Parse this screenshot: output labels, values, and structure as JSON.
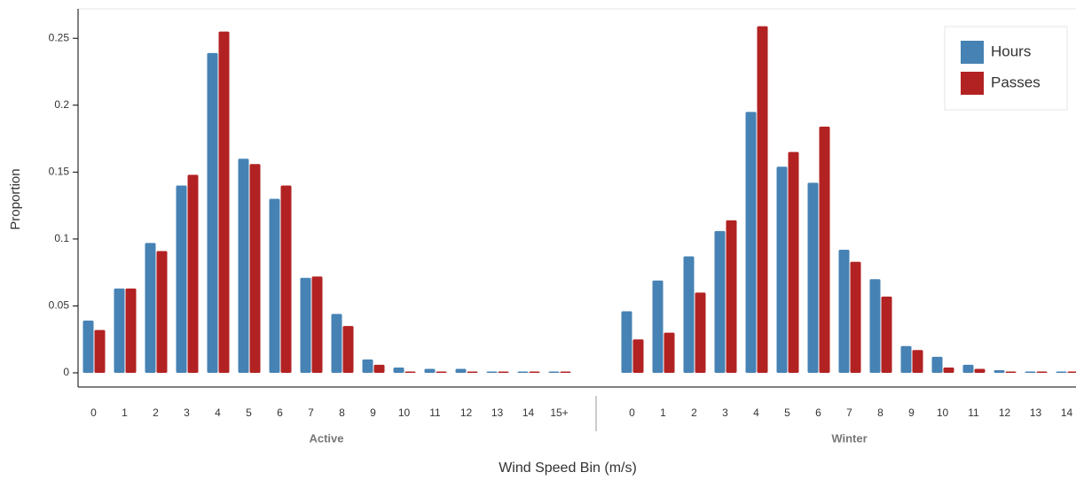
{
  "chart_data": {
    "type": "bar",
    "x_label": "Wind Speed Bin (m/s)",
    "y_label": "Proportion",
    "ylim": [
      -0.0106,
      0.272
    ],
    "yticks": [
      0,
      0.05,
      0.1,
      0.15,
      0.2,
      0.25
    ],
    "legend": "upper right",
    "groups": [
      {
        "name": "Active",
        "categories": [
          "0",
          "1",
          "2",
          "3",
          "4",
          "5",
          "6",
          "7",
          "8",
          "9",
          "10",
          "11",
          "12",
          "13",
          "14",
          "15+"
        ]
      },
      {
        "name": "Winter",
        "categories": [
          "0",
          "1",
          "2",
          "3",
          "4",
          "5",
          "6",
          "7",
          "8",
          "9",
          "10",
          "11",
          "12",
          "13",
          "14"
        ]
      }
    ],
    "series": [
      {
        "name": "Hours",
        "color": "#4682b4",
        "values": [
          [
            0.039,
            0.063,
            0.097,
            0.14,
            0.239,
            0.16,
            0.13,
            0.071,
            0.044,
            0.01,
            0.004,
            0.003,
            0.003,
            0.001,
            0.001,
            0.001
          ],
          [
            0.046,
            0.069,
            0.087,
            0.106,
            0.195,
            0.154,
            0.142,
            0.092,
            0.07,
            0.02,
            0.012,
            0.006,
            0.002,
            0.001,
            0.001
          ]
        ]
      },
      {
        "name": "Passes",
        "color": "#b22222",
        "values": [
          [
            0.032,
            0.063,
            0.091,
            0.148,
            0.255,
            0.156,
            0.14,
            0.072,
            0.035,
            0.006,
            0.001,
            0.001,
            0.001,
            0.001,
            0.001,
            0.001
          ],
          [
            0.025,
            0.03,
            0.06,
            0.114,
            0.259,
            0.165,
            0.184,
            0.083,
            0.057,
            0.017,
            0.004,
            0.003,
            0.001,
            0.001,
            0.001
          ]
        ]
      }
    ]
  }
}
